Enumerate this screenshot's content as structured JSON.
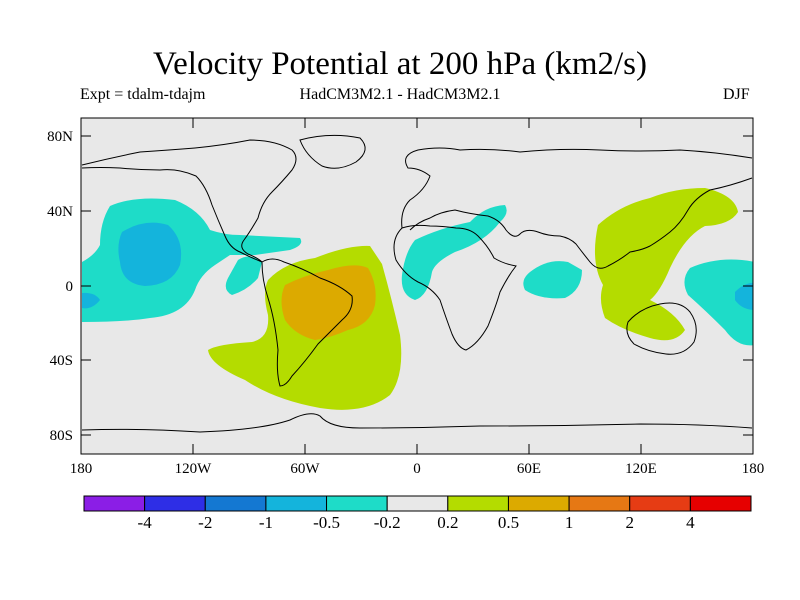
{
  "figure": {
    "title": "Velocity Potential at 200 hPa (km2/s)",
    "experiment": "Expt = tdalm-tdajm",
    "models": "HadCM3M2.1 - HadCM3M2.1",
    "season": "DJF"
  },
  "map": {
    "projection": "cylindrical-equidistant",
    "lon_range": [
      -180,
      180
    ],
    "lat_range": [
      -90,
      90
    ],
    "y_ticks": [
      "80N",
      "40N",
      "0",
      "40S",
      "80S"
    ],
    "x_ticks": [
      "180",
      "120W",
      "60W",
      "0",
      "60E",
      "120E",
      "180"
    ],
    "background_color": "#e8e8e8",
    "coastline_color": "#000000"
  },
  "colorbar": {
    "boundaries": [
      "-4",
      "-2",
      "-1",
      "-0.5",
      "-0.2",
      "0.2",
      "0.5",
      "1",
      "2",
      "4"
    ],
    "colors": [
      "#8b1ee6",
      "#2e2ee6",
      "#1478d2",
      "#14b4dc",
      "#1edcc8",
      "#e8e8e8",
      "#b4dc00",
      "#dcaa00",
      "#e67814",
      "#e63c14",
      "#e60000"
    ]
  },
  "fields": {
    "negative_low": "#1edcc8",
    "negative_mid": "#14b4dc",
    "positive_low": "#b4dc00",
    "positive_mid": "#dcaa00"
  }
}
